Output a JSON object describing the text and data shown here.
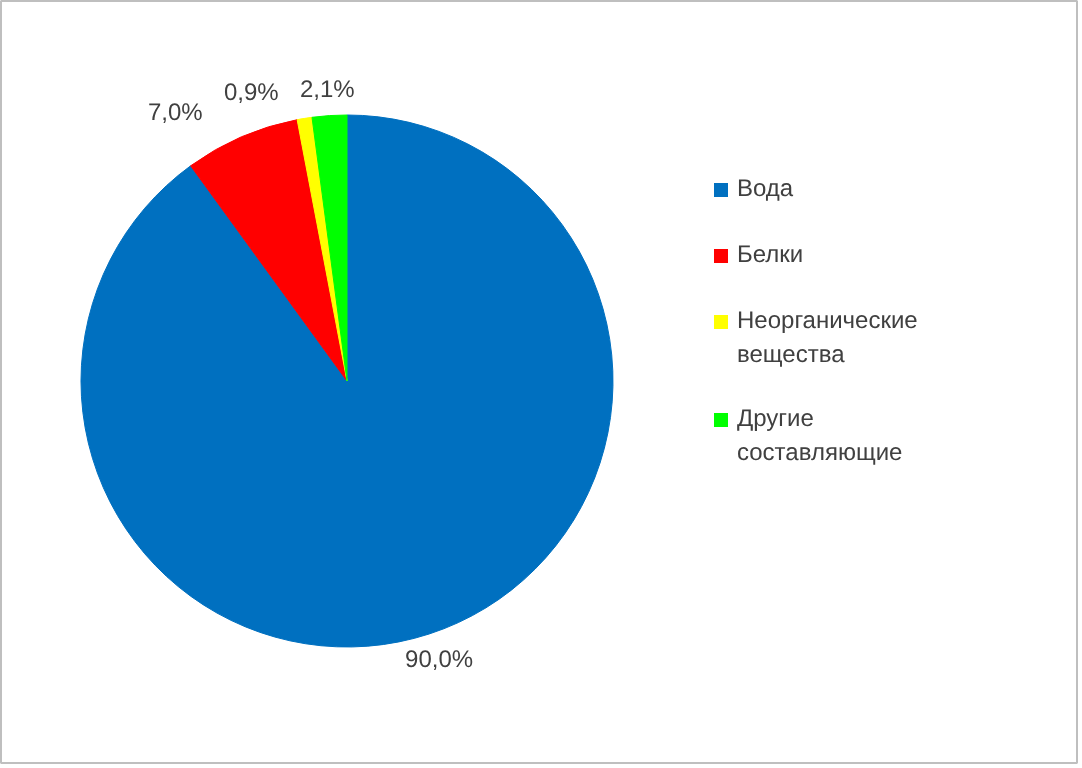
{
  "chart_data": {
    "type": "pie",
    "categories": [
      "Вода",
      "Белки",
      "Неорганические вещества",
      "Другие составляющие"
    ],
    "values": [
      90.0,
      7.0,
      0.9,
      2.1
    ],
    "colors": [
      "#0070c0",
      "#ff0000",
      "#ffff00",
      "#00ff00"
    ],
    "value_labels": [
      "90,0%",
      "7,0%",
      "0,9%",
      "2,1%"
    ],
    "legend": "right"
  }
}
